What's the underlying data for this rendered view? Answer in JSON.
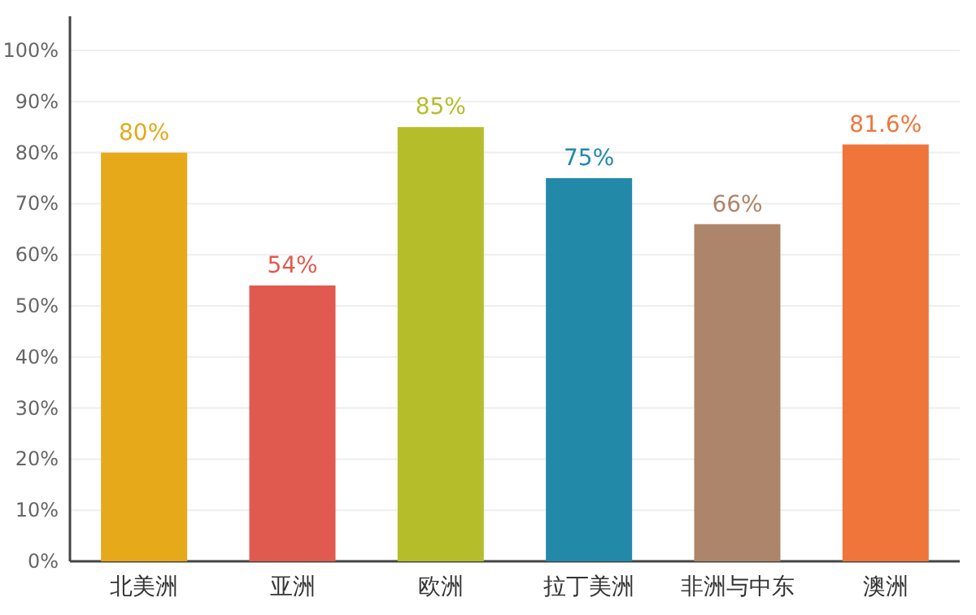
{
  "chart_data": {
    "type": "bar",
    "categories": [
      "北美洲",
      "亚洲",
      "欧洲",
      "拉丁美洲",
      "非洲与中东",
      "澳洲"
    ],
    "values": [
      80,
      54,
      85,
      75,
      66,
      81.6
    ],
    "colors": [
      "#e5a919",
      "#e05a50",
      "#b5bd2a",
      "#2389a8",
      "#ac856a",
      "#ef753b"
    ],
    "value_labels": [
      "80%",
      "54%",
      "85%",
      "75%",
      "66%",
      "81.6%"
    ],
    "ylim": [
      0,
      100
    ],
    "yticks": [
      {
        "value": 0,
        "label": "0%"
      },
      {
        "value": 10,
        "label": "10%"
      },
      {
        "value": 20,
        "label": "20%"
      },
      {
        "value": 30,
        "label": "30%"
      },
      {
        "value": 40,
        "label": "40%"
      },
      {
        "value": 50,
        "label": "50%"
      },
      {
        "value": 60,
        "label": "60%"
      },
      {
        "value": 70,
        "label": "70%"
      },
      {
        "value": 80,
        "label": "80%"
      },
      {
        "value": 90,
        "label": "90%"
      },
      {
        "value": 100,
        "label": "100%"
      }
    ],
    "grid": "y"
  }
}
